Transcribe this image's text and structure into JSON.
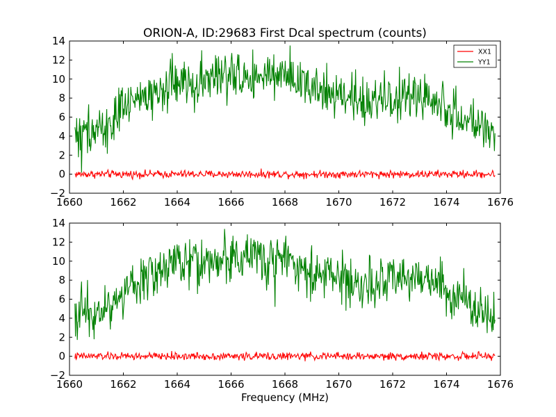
{
  "figure": {
    "title": "ORION-A, ID:29683 First Dcal spectrum (counts)",
    "xlabel": "Frequency (MHz)"
  },
  "chart_data": [
    {
      "type": "line",
      "title": "ORION-A, ID:29683 First Dcal spectrum (counts)",
      "xlabel": "",
      "ylabel": "",
      "xlim": [
        1660,
        1676
      ],
      "ylim": [
        -2,
        14
      ],
      "xticks": [
        "1660",
        "1662",
        "1664",
        "1666",
        "1668",
        "1670",
        "1672",
        "1674",
        "1676"
      ],
      "yticks": [
        "−2",
        "0",
        "2",
        "4",
        "6",
        "8",
        "10",
        "12",
        "14"
      ],
      "grid": false,
      "legend": {
        "position": "top-right"
      },
      "series": [
        {
          "name": "XX1",
          "color": "#ff0000",
          "x_range": [
            1660.2,
            1675.8
          ],
          "x": [
            1660.2,
            1662,
            1664,
            1666,
            1668,
            1670,
            1672,
            1674,
            1675.8
          ],
          "y": [
            0.0,
            0.0,
            0.0,
            0.0,
            0.0,
            0.0,
            0.0,
            0.0,
            0.0
          ],
          "noise_amplitude": 0.2
        },
        {
          "name": "YY1",
          "color": "#008000",
          "x_range": [
            1660.2,
            1675.8
          ],
          "x": [
            1660.2,
            1661.0,
            1661.5,
            1662.0,
            1662.5,
            1663.0,
            1663.5,
            1664.0,
            1665.0,
            1666.0,
            1667.0,
            1668.0,
            1668.5,
            1669.0,
            1670.0,
            1671.0,
            1671.5,
            1672.0,
            1673.0,
            1673.5,
            1674.0,
            1674.5,
            1675.0,
            1675.8
          ],
          "y": [
            4.4,
            4.6,
            5.4,
            6.6,
            7.6,
            8.6,
            9.3,
            9.7,
            10.0,
            10.3,
            10.4,
            10.0,
            9.5,
            8.9,
            8.2,
            7.7,
            7.6,
            7.9,
            8.1,
            7.9,
            7.0,
            6.0,
            5.0,
            4.3
          ],
          "noise_amplitude": 1.2
        }
      ]
    },
    {
      "type": "line",
      "title": "",
      "xlabel": "Frequency (MHz)",
      "ylabel": "",
      "xlim": [
        1660,
        1676
      ],
      "ylim": [
        -2,
        14
      ],
      "xticks": [
        "1660",
        "1662",
        "1664",
        "1666",
        "1668",
        "1670",
        "1672",
        "1674",
        "1676"
      ],
      "yticks": [
        "−2",
        "0",
        "2",
        "4",
        "6",
        "8",
        "10",
        "12",
        "14"
      ],
      "grid": false,
      "series": [
        {
          "name": "XX1",
          "color": "#ff0000",
          "x_range": [
            1660.2,
            1675.8
          ],
          "x": [
            1660.2,
            1662,
            1664,
            1666,
            1668,
            1670,
            1672,
            1674,
            1675.8
          ],
          "y": [
            0.0,
            0.0,
            0.0,
            0.0,
            0.0,
            0.0,
            0.0,
            0.0,
            0.0
          ],
          "noise_amplitude": 0.2
        },
        {
          "name": "YY1",
          "color": "#008000",
          "x_range": [
            1660.2,
            1675.8
          ],
          "x": [
            1660.2,
            1661.0,
            1661.5,
            1662.0,
            1662.5,
            1663.0,
            1663.5,
            1664.0,
            1665.0,
            1666.0,
            1667.0,
            1668.0,
            1668.5,
            1669.0,
            1670.0,
            1671.0,
            1671.5,
            1672.0,
            1673.0,
            1673.5,
            1674.0,
            1674.5,
            1675.0,
            1675.8
          ],
          "y": [
            4.4,
            4.6,
            5.4,
            6.6,
            7.6,
            8.6,
            9.4,
            9.8,
            10.0,
            10.3,
            10.5,
            10.0,
            9.4,
            8.8,
            8.0,
            7.7,
            7.6,
            7.9,
            8.1,
            7.8,
            6.9,
            5.9,
            5.0,
            4.3
          ],
          "noise_amplitude": 1.2
        }
      ]
    }
  ]
}
